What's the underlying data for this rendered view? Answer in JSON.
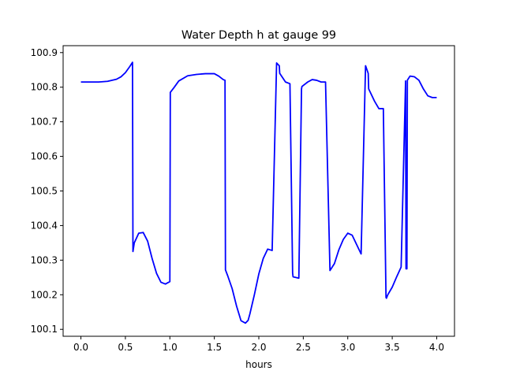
{
  "chart_data": {
    "type": "line",
    "title": "Water Depth h at gauge 99",
    "xlabel": "hours",
    "ylabel": "",
    "xlim": [
      -0.2,
      4.2
    ],
    "ylim": [
      100.08,
      100.92
    ],
    "xticks": [
      0.0,
      0.5,
      1.0,
      1.5,
      2.0,
      2.5,
      3.0,
      3.5,
      4.0
    ],
    "xtick_labels": [
      "0.0",
      "0.5",
      "1.0",
      "1.5",
      "2.0",
      "2.5",
      "3.0",
      "3.5",
      "4.0"
    ],
    "yticks": [
      100.1,
      100.2,
      100.3,
      100.4,
      100.5,
      100.6,
      100.7,
      100.8,
      100.9
    ],
    "ytick_labels": [
      "100.1",
      "100.2",
      "100.3",
      "100.4",
      "100.5",
      "100.6",
      "100.7",
      "100.8",
      "100.9"
    ],
    "grid": false,
    "line_color": "#0000ff",
    "series": [
      {
        "x": [
          0.0,
          0.2,
          0.3,
          0.4,
          0.45,
          0.5,
          0.55,
          0.58,
          0.585,
          0.6,
          0.65,
          0.7,
          0.75,
          0.8,
          0.85,
          0.9,
          0.95,
          1.0,
          1.005,
          1.05,
          1.1,
          1.2,
          1.3,
          1.4,
          1.5,
          1.55,
          1.6,
          1.62,
          1.625,
          1.65,
          1.7,
          1.75,
          1.8,
          1.85,
          1.88,
          1.9,
          1.95,
          2.0,
          2.05,
          2.1,
          2.15,
          2.2,
          2.23,
          2.235,
          2.3,
          2.35,
          2.38,
          2.385,
          2.45,
          2.48,
          2.485,
          2.55,
          2.6,
          2.65,
          2.7,
          2.75,
          2.8,
          2.805,
          2.85,
          2.9,
          2.95,
          3.0,
          3.05,
          3.1,
          3.15,
          3.2,
          3.23,
          3.235,
          3.3,
          3.35,
          3.4,
          3.43,
          3.435,
          3.45,
          3.5,
          3.55,
          3.6,
          3.65,
          3.655,
          3.665,
          3.67,
          3.675,
          3.7,
          3.75,
          3.8,
          3.85,
          3.9,
          3.95,
          4.0
        ],
        "y": [
          100.815,
          100.815,
          100.817,
          100.823,
          100.83,
          100.842,
          100.86,
          100.872,
          100.325,
          100.35,
          100.378,
          100.38,
          100.355,
          100.305,
          100.262,
          100.236,
          100.231,
          100.238,
          100.785,
          100.8,
          100.818,
          100.833,
          100.837,
          100.839,
          100.839,
          100.832,
          100.822,
          100.82,
          100.272,
          100.255,
          100.218,
          100.167,
          100.125,
          100.118,
          100.126,
          100.145,
          100.2,
          100.26,
          100.305,
          100.332,
          100.328,
          100.87,
          100.862,
          100.84,
          100.815,
          100.81,
          100.263,
          100.252,
          100.248,
          100.795,
          100.802,
          100.815,
          100.822,
          100.82,
          100.815,
          100.815,
          100.27,
          100.272,
          100.29,
          100.33,
          100.36,
          100.378,
          100.372,
          100.345,
          100.318,
          100.862,
          100.84,
          100.795,
          100.76,
          100.738,
          100.738,
          100.192,
          100.19,
          100.2,
          100.222,
          100.252,
          100.28,
          100.818,
          100.275,
          100.275,
          100.82,
          100.822,
          100.832,
          100.83,
          100.82,
          100.795,
          100.775,
          100.77,
          100.77
        ]
      }
    ]
  }
}
